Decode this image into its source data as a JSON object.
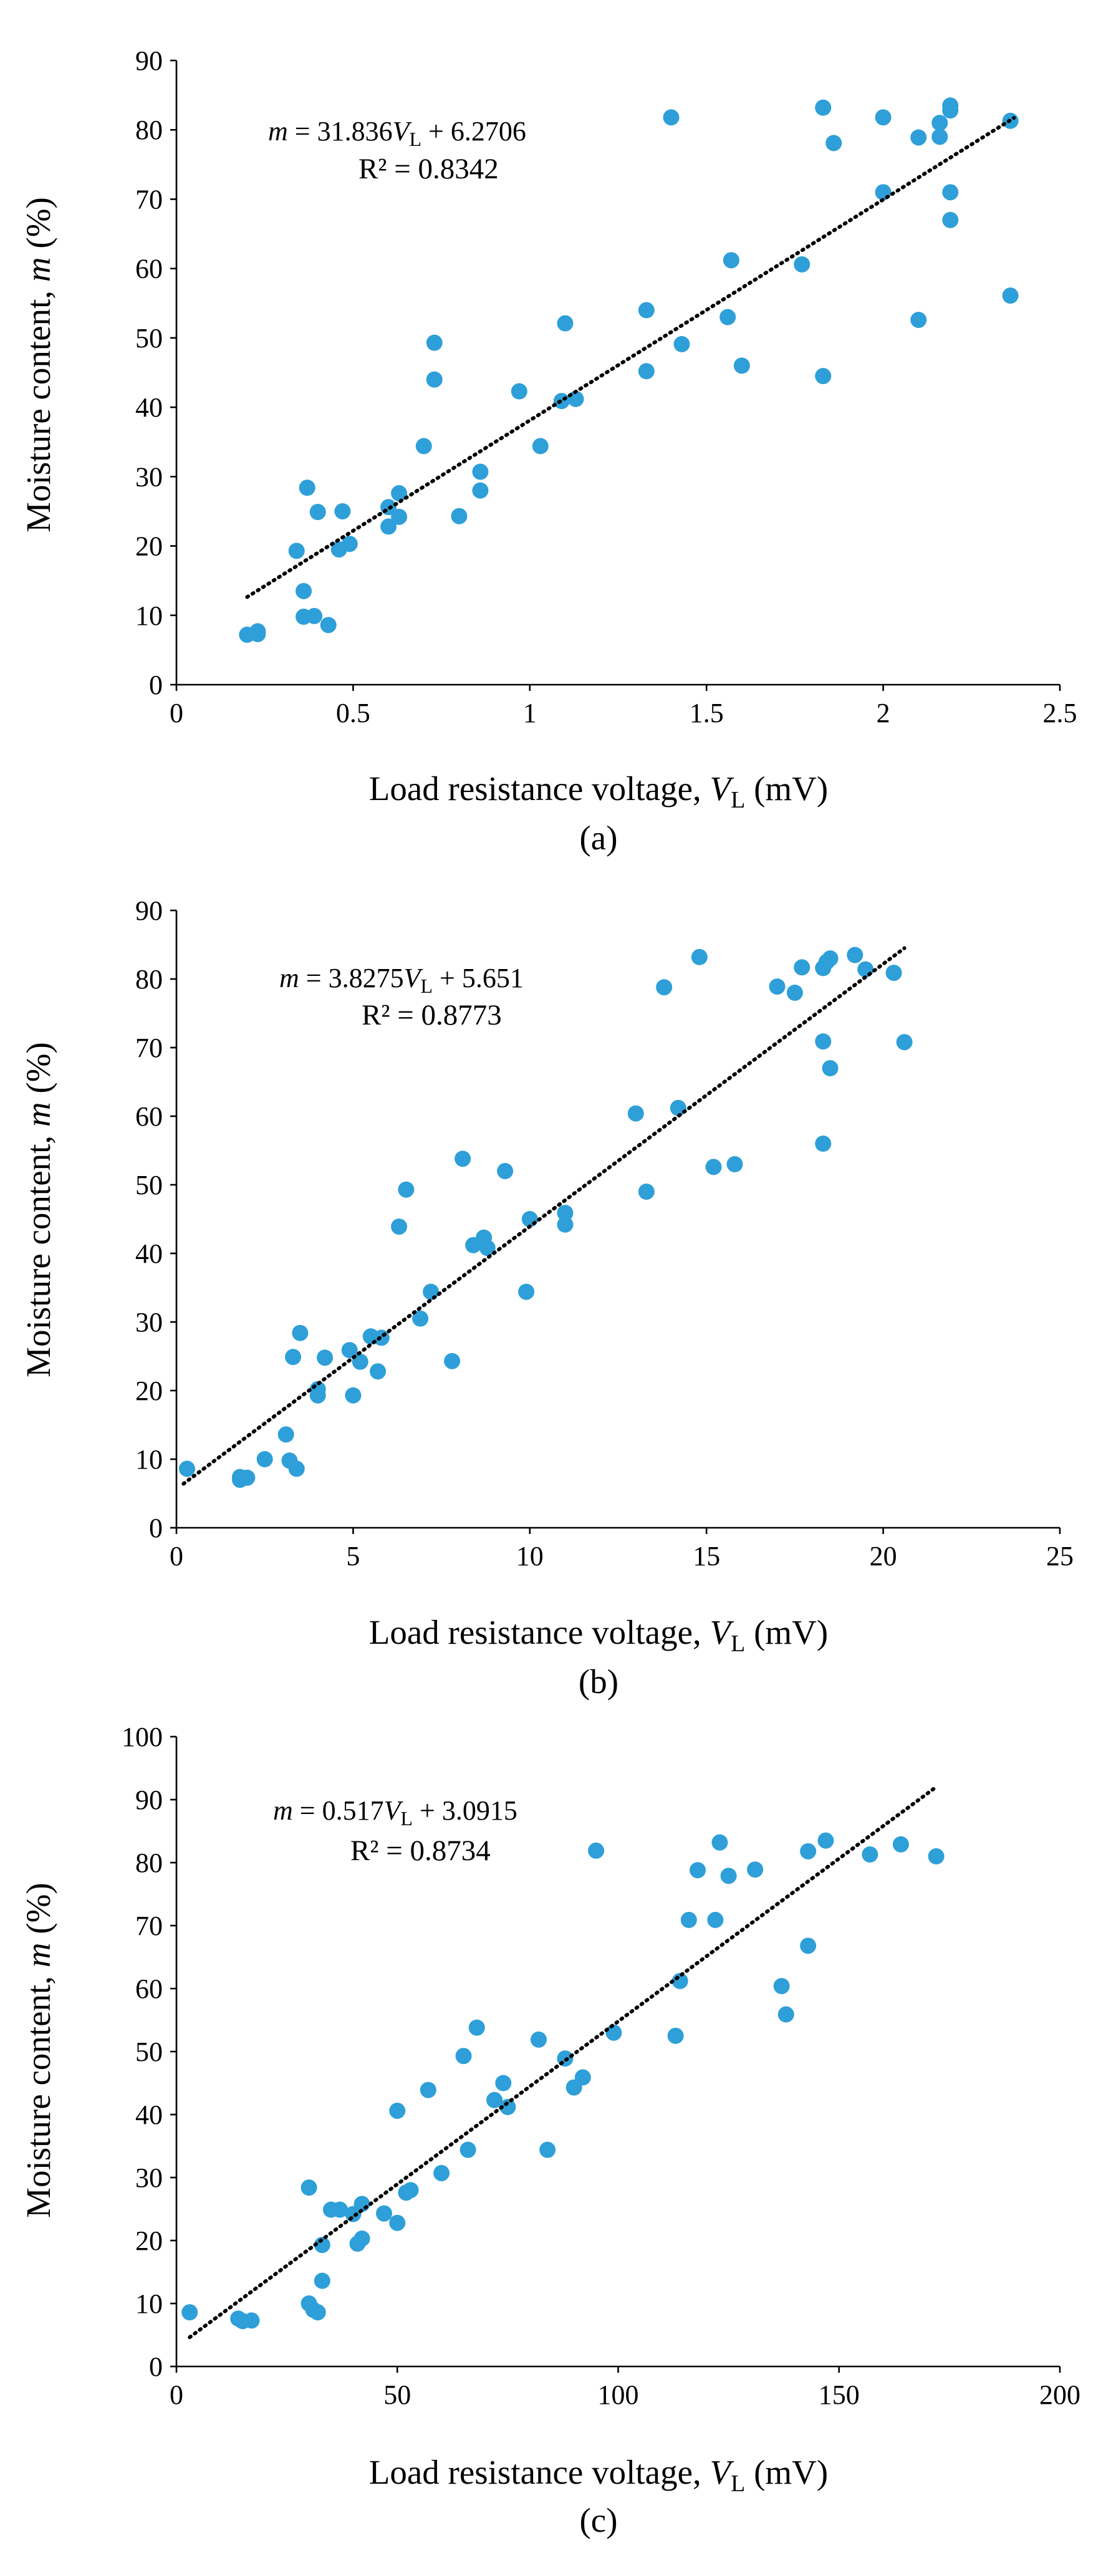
{
  "chart_data": [
    {
      "type": "scatter",
      "panel_label": "(a)",
      "xlabel": "Load resistance voltage,",
      "xvar": "V",
      "xsub": "L",
      "xunit": "(mV)",
      "ylabel": "Moisture content,",
      "yvar": "m",
      "yunit": "(%)",
      "xlim": [
        0,
        2.5
      ],
      "ylim": [
        0,
        90
      ],
      "xticks": [
        0,
        0.5,
        1,
        1.5,
        2,
        2.5
      ],
      "xtick_labels": [
        "0",
        "0.5",
        "1",
        "1.5",
        "2",
        "2.5"
      ],
      "yticks": [
        0,
        10,
        20,
        30,
        40,
        50,
        60,
        70,
        80,
        90
      ],
      "ytick_labels": [
        "0",
        "10",
        "20",
        "30",
        "40",
        "50",
        "60",
        "70",
        "80",
        "90"
      ],
      "equation": {
        "lhs": "m",
        "text": " = 31.836",
        "var": "V",
        "sub": "L",
        "tail": " + 6.2706"
      },
      "r2": "R² = 0.8342",
      "trendline": {
        "slope": 31.836,
        "intercept": 6.2706,
        "x_range": [
          0.2,
          2.37
        ]
      },
      "points": [
        [
          0.2,
          7.2
        ],
        [
          0.23,
          7.3
        ],
        [
          0.23,
          7.7
        ],
        [
          0.34,
          19.3
        ],
        [
          0.36,
          13.5
        ],
        [
          0.36,
          9.8
        ],
        [
          0.37,
          28.4
        ],
        [
          0.39,
          9.9
        ],
        [
          0.4,
          24.9
        ],
        [
          0.43,
          8.6
        ],
        [
          0.46,
          19.5
        ],
        [
          0.47,
          25.0
        ],
        [
          0.49,
          20.3
        ],
        [
          0.6,
          25.6
        ],
        [
          0.6,
          22.8
        ],
        [
          0.63,
          24.2
        ],
        [
          0.63,
          27.6
        ],
        [
          0.7,
          34.4
        ],
        [
          0.73,
          49.3
        ],
        [
          0.73,
          44.0
        ],
        [
          0.8,
          24.3
        ],
        [
          0.86,
          30.7
        ],
        [
          0.86,
          28.0
        ],
        [
          0.97,
          42.3
        ],
        [
          1.03,
          34.4
        ],
        [
          1.09,
          40.9
        ],
        [
          1.1,
          52.1
        ],
        [
          1.13,
          41.2
        ],
        [
          1.33,
          54.0
        ],
        [
          1.33,
          45.2
        ],
        [
          1.4,
          81.8
        ],
        [
          1.43,
          49.1
        ],
        [
          1.56,
          53.0
        ],
        [
          1.57,
          61.2
        ],
        [
          1.6,
          46.0
        ],
        [
          1.77,
          60.6
        ],
        [
          1.83,
          83.2
        ],
        [
          1.83,
          44.5
        ],
        [
          1.86,
          78.1
        ],
        [
          2.0,
          81.8
        ],
        [
          2.0,
          71.0
        ],
        [
          2.1,
          78.9
        ],
        [
          2.1,
          52.6
        ],
        [
          2.16,
          81.0
        ],
        [
          2.16,
          79.0
        ],
        [
          2.19,
          83.5
        ],
        [
          2.19,
          82.8
        ],
        [
          2.19,
          71.0
        ],
        [
          2.19,
          67.0
        ],
        [
          2.36,
          81.3
        ],
        [
          2.36,
          56.1
        ]
      ]
    },
    {
      "type": "scatter",
      "panel_label": "(b)",
      "xlabel": "Load resistance voltage,",
      "xvar": "V",
      "xsub": "L",
      "xunit": "(mV)",
      "ylabel": "Moisture content,",
      "yvar": "m",
      "yunit": "(%)",
      "xlim": [
        0,
        25
      ],
      "ylim": [
        0,
        90
      ],
      "xticks": [
        0,
        5,
        10,
        15,
        20,
        25
      ],
      "xtick_labels": [
        "0",
        "5",
        "10",
        "15",
        "20",
        "25"
      ],
      "yticks": [
        0,
        10,
        20,
        30,
        40,
        50,
        60,
        70,
        80,
        90
      ],
      "ytick_labels": [
        "0",
        "10",
        "20",
        "30",
        "40",
        "50",
        "60",
        "70",
        "80",
        "90"
      ],
      "equation": {
        "lhs": "m",
        "text": " = 3.8275",
        "var": "V",
        "sub": "L",
        "tail": " + 5.651"
      },
      "r2": "R² = 0.8773",
      "trendline": {
        "slope": 3.8275,
        "intercept": 5.651,
        "x_range": [
          0.2,
          20.6
        ]
      },
      "points": [
        [
          0.3,
          8.6
        ],
        [
          1.8,
          7.4
        ],
        [
          1.8,
          7.0
        ],
        [
          2.0,
          7.3
        ],
        [
          2.5,
          10.0
        ],
        [
          3.1,
          13.6
        ],
        [
          3.2,
          9.8
        ],
        [
          3.3,
          24.9
        ],
        [
          3.4,
          8.6
        ],
        [
          3.5,
          28.4
        ],
        [
          4.0,
          20.2
        ],
        [
          4.0,
          19.3
        ],
        [
          4.2,
          24.8
        ],
        [
          4.9,
          25.9
        ],
        [
          5.0,
          19.3
        ],
        [
          5.2,
          24.2
        ],
        [
          5.5,
          27.9
        ],
        [
          5.7,
          22.8
        ],
        [
          5.8,
          27.7
        ],
        [
          6.3,
          43.9
        ],
        [
          6.5,
          49.3
        ],
        [
          6.9,
          30.5
        ],
        [
          7.2,
          34.4
        ],
        [
          7.8,
          24.3
        ],
        [
          8.1,
          53.8
        ],
        [
          8.4,
          41.2
        ],
        [
          8.7,
          42.3
        ],
        [
          8.8,
          40.8
        ],
        [
          9.3,
          52.0
        ],
        [
          9.9,
          34.4
        ],
        [
          10.0,
          45.0
        ],
        [
          11.0,
          44.2
        ],
        [
          11.0,
          45.9
        ],
        [
          13.0,
          60.4
        ],
        [
          13.3,
          49.0
        ],
        [
          13.8,
          78.8
        ],
        [
          14.2,
          61.2
        ],
        [
          14.8,
          83.2
        ],
        [
          15.2,
          52.6
        ],
        [
          15.8,
          53.0
        ],
        [
          17.0,
          78.9
        ],
        [
          17.5,
          78.0
        ],
        [
          17.7,
          81.7
        ],
        [
          18.3,
          81.6
        ],
        [
          18.3,
          70.9
        ],
        [
          18.3,
          56.0
        ],
        [
          18.4,
          82.5
        ],
        [
          18.5,
          83.0
        ],
        [
          18.5,
          67.0
        ],
        [
          19.2,
          83.5
        ],
        [
          19.5,
          81.4
        ],
        [
          20.3,
          80.9
        ],
        [
          20.6,
          70.8
        ]
      ]
    },
    {
      "type": "scatter",
      "panel_label": "(c)",
      "xlabel": "Load resistance voltage,",
      "xvar": "V",
      "xsub": "L",
      "xunit": "(mV)",
      "ylabel": "Moisture content,",
      "yvar": "m",
      "yunit": "(%)",
      "xlim": [
        0,
        200
      ],
      "ylim": [
        0,
        100
      ],
      "xticks": [
        0,
        50,
        100,
        150,
        200
      ],
      "xtick_labels": [
        "0",
        "50",
        "100",
        "150",
        "200"
      ],
      "yticks": [
        0,
        10,
        20,
        30,
        40,
        50,
        60,
        70,
        80,
        90,
        100
      ],
      "ytick_labels": [
        "0",
        "10",
        "20",
        "30",
        "40",
        "50",
        "60",
        "70",
        "80",
        "90",
        "100"
      ],
      "equation": {
        "lhs": "m",
        "text": " = 0.517",
        "var": "V",
        "sub": "L",
        "tail": " + 3.0915"
      },
      "r2": "R² = 0.8734",
      "trendline": {
        "slope": 0.517,
        "intercept": 3.0915,
        "x_range": [
          3.0,
          172.0
        ]
      },
      "points": [
        [
          3,
          8.6
        ],
        [
          14,
          7.6
        ],
        [
          15,
          7.2
        ],
        [
          17,
          7.3
        ],
        [
          30,
          28.4
        ],
        [
          30,
          10.0
        ],
        [
          31,
          9.0
        ],
        [
          32,
          8.6
        ],
        [
          33,
          13.6
        ],
        [
          33,
          19.3
        ],
        [
          35,
          24.9
        ],
        [
          37,
          24.9
        ],
        [
          40,
          24.2
        ],
        [
          41,
          19.5
        ],
        [
          42,
          20.3
        ],
        [
          42,
          25.8
        ],
        [
          47,
          24.3
        ],
        [
          50,
          40.6
        ],
        [
          50,
          22.8
        ],
        [
          52,
          27.6
        ],
        [
          53,
          28.0
        ],
        [
          57,
          43.9
        ],
        [
          60,
          30.7
        ],
        [
          65,
          49.3
        ],
        [
          66,
          34.4
        ],
        [
          68,
          53.8
        ],
        [
          72,
          42.3
        ],
        [
          74,
          45.0
        ],
        [
          75,
          41.2
        ],
        [
          82,
          51.9
        ],
        [
          84,
          34.4
        ],
        [
          88,
          48.9
        ],
        [
          90,
          44.3
        ],
        [
          92,
          45.9
        ],
        [
          95,
          81.9
        ],
        [
          99,
          53.0
        ],
        [
          113,
          52.5
        ],
        [
          114,
          61.2
        ],
        [
          116,
          70.9
        ],
        [
          118,
          78.8
        ],
        [
          122,
          70.9
        ],
        [
          123,
          83.2
        ],
        [
          125,
          77.9
        ],
        [
          131,
          78.9
        ],
        [
          137,
          60.4
        ],
        [
          138,
          55.9
        ],
        [
          143,
          81.8
        ],
        [
          143,
          66.8
        ],
        [
          147,
          83.5
        ],
        [
          157,
          81.3
        ],
        [
          164,
          82.9
        ],
        [
          172,
          81.0
        ]
      ]
    }
  ]
}
